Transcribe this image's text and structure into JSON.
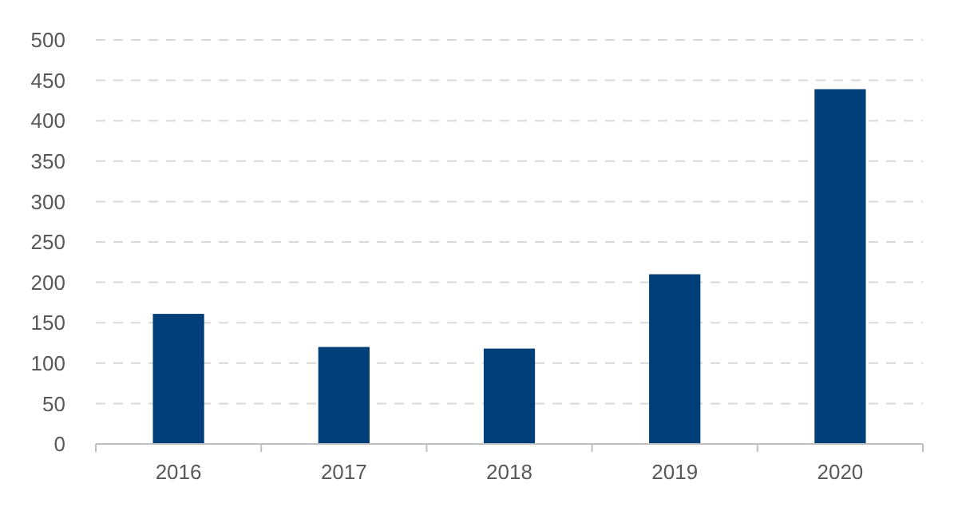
{
  "chart_data": {
    "type": "bar",
    "categories": [
      "2016",
      "2017",
      "2018",
      "2019",
      "2020"
    ],
    "values": [
      161,
      120,
      118,
      210,
      439
    ],
    "color": "#003f7a",
    "ylim": [
      0,
      500
    ],
    "yticks": [
      0,
      50,
      100,
      150,
      200,
      250,
      300,
      350,
      400,
      450,
      500
    ],
    "grid": "y"
  }
}
